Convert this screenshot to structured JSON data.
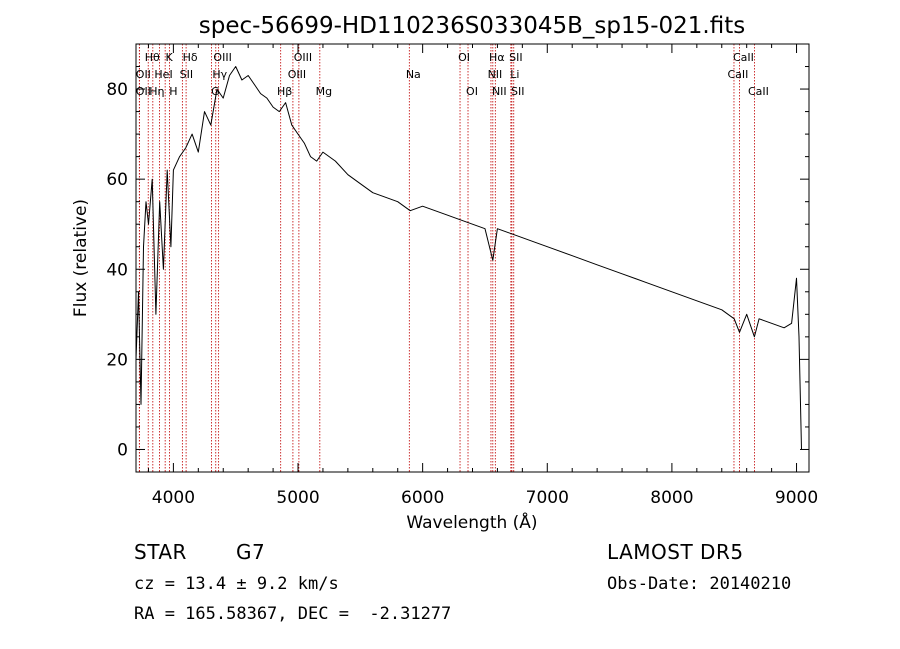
{
  "header": {
    "title": "spec-56699-HD110236S033045B_sp15-021.fits"
  },
  "info": {
    "class": "STAR",
    "subclass": "G7",
    "survey": "LAMOST DR5",
    "cz": "cz = 13.4 ± 9.2 km/s",
    "obs_date": "Obs-Date: 20140210",
    "coords": "RA = 165.58367, DEC =  -2.31277"
  },
  "colors": {
    "spectrum": "#000000",
    "line_marker": "#c00000"
  },
  "chart_data": {
    "type": "line",
    "xlabel": "Wavelength (Å)",
    "ylabel": "Flux (relative)",
    "xlim": [
      3700,
      9100
    ],
    "ylim": [
      -5,
      90
    ],
    "xticks": [
      4000,
      5000,
      6000,
      7000,
      8000,
      9000
    ],
    "yticks": [
      0,
      20,
      40,
      60,
      80
    ],
    "grid": false,
    "series": [
      {
        "x": [
          3700,
          3720,
          3740,
          3760,
          3780,
          3800,
          3830,
          3860,
          3890,
          3920,
          3950,
          3980,
          4000,
          4050,
          4100,
          4150,
          4200,
          4250,
          4300,
          4350,
          4400,
          4450,
          4500,
          4550,
          4600,
          4650,
          4700,
          4750,
          4800,
          4850,
          4900,
          4950,
          5000,
          5050,
          5100,
          5150,
          5200,
          5300,
          5400,
          5500,
          5600,
          5700,
          5800,
          5900,
          6000,
          6100,
          6200,
          6300,
          6400,
          6500,
          6563,
          6600,
          6700,
          6800,
          6900,
          7000,
          7200,
          7400,
          7600,
          7800,
          8000,
          8200,
          8400,
          8500,
          8542,
          8600,
          8662,
          8700,
          8800,
          8900,
          8960,
          9000,
          9020,
          9040
        ],
        "y": [
          20,
          35,
          10,
          45,
          55,
          50,
          60,
          30,
          55,
          40,
          62,
          45,
          62,
          65,
          67,
          70,
          66,
          75,
          72,
          80,
          78,
          83,
          85,
          82,
          83,
          81,
          79,
          78,
          76,
          75,
          77,
          72,
          70,
          68,
          65,
          64,
          66,
          64,
          61,
          59,
          57,
          56,
          55,
          53,
          54,
          53,
          52,
          51,
          50,
          49,
          42,
          49,
          48,
          47,
          46,
          45,
          43,
          41,
          39,
          37,
          35,
          33,
          31,
          29,
          26,
          30,
          25,
          29,
          28,
          27,
          28,
          38,
          25,
          0
        ]
      }
    ],
    "lines": [
      {
        "wave": 3727,
        "label": "OII",
        "row": 1
      },
      {
        "wave": 3727,
        "label": "OII",
        "row": 2
      },
      {
        "wave": 3798,
        "label": "Hθ",
        "row": 0
      },
      {
        "wave": 3835,
        "label": "Hη",
        "row": 2
      },
      {
        "wave": 3889,
        "label": "HeI",
        "row": 1
      },
      {
        "wave": 3934,
        "label": "K",
        "row": 0
      },
      {
        "wave": 3968,
        "label": "H",
        "row": 2
      },
      {
        "wave": 4072,
        "label": "SII",
        "row": 1
      },
      {
        "wave": 4102,
        "label": "Hδ",
        "row": 0
      },
      {
        "wave": 4305,
        "label": "G",
        "row": 2
      },
      {
        "wave": 4340,
        "label": "Hγ",
        "row": 1
      },
      {
        "wave": 4363,
        "label": "OIII",
        "row": 0
      },
      {
        "wave": 4861,
        "label": "Hβ",
        "row": 2
      },
      {
        "wave": 4959,
        "label": "OIII",
        "row": 1
      },
      {
        "wave": 5007,
        "label": "OIII",
        "row": 0
      },
      {
        "wave": 5175,
        "label": "Mg",
        "row": 2
      },
      {
        "wave": 5893,
        "label": "Na",
        "row": 1
      },
      {
        "wave": 6300,
        "label": "OI",
        "row": 0
      },
      {
        "wave": 6364,
        "label": "OI",
        "row": 2
      },
      {
        "wave": 6548,
        "label": "NII",
        "row": 1
      },
      {
        "wave": 6563,
        "label": "Hα",
        "row": 0
      },
      {
        "wave": 6583,
        "label": "NII",
        "row": 2
      },
      {
        "wave": 6708,
        "label": "Li",
        "row": 1
      },
      {
        "wave": 6716,
        "label": "SII",
        "row": 0
      },
      {
        "wave": 6731,
        "label": "SII",
        "row": 2
      },
      {
        "wave": 8498,
        "label": "CaII",
        "row": 1
      },
      {
        "wave": 8542,
        "label": "CaII",
        "row": 0
      },
      {
        "wave": 8662,
        "label": "CaII",
        "row": 2
      }
    ]
  }
}
